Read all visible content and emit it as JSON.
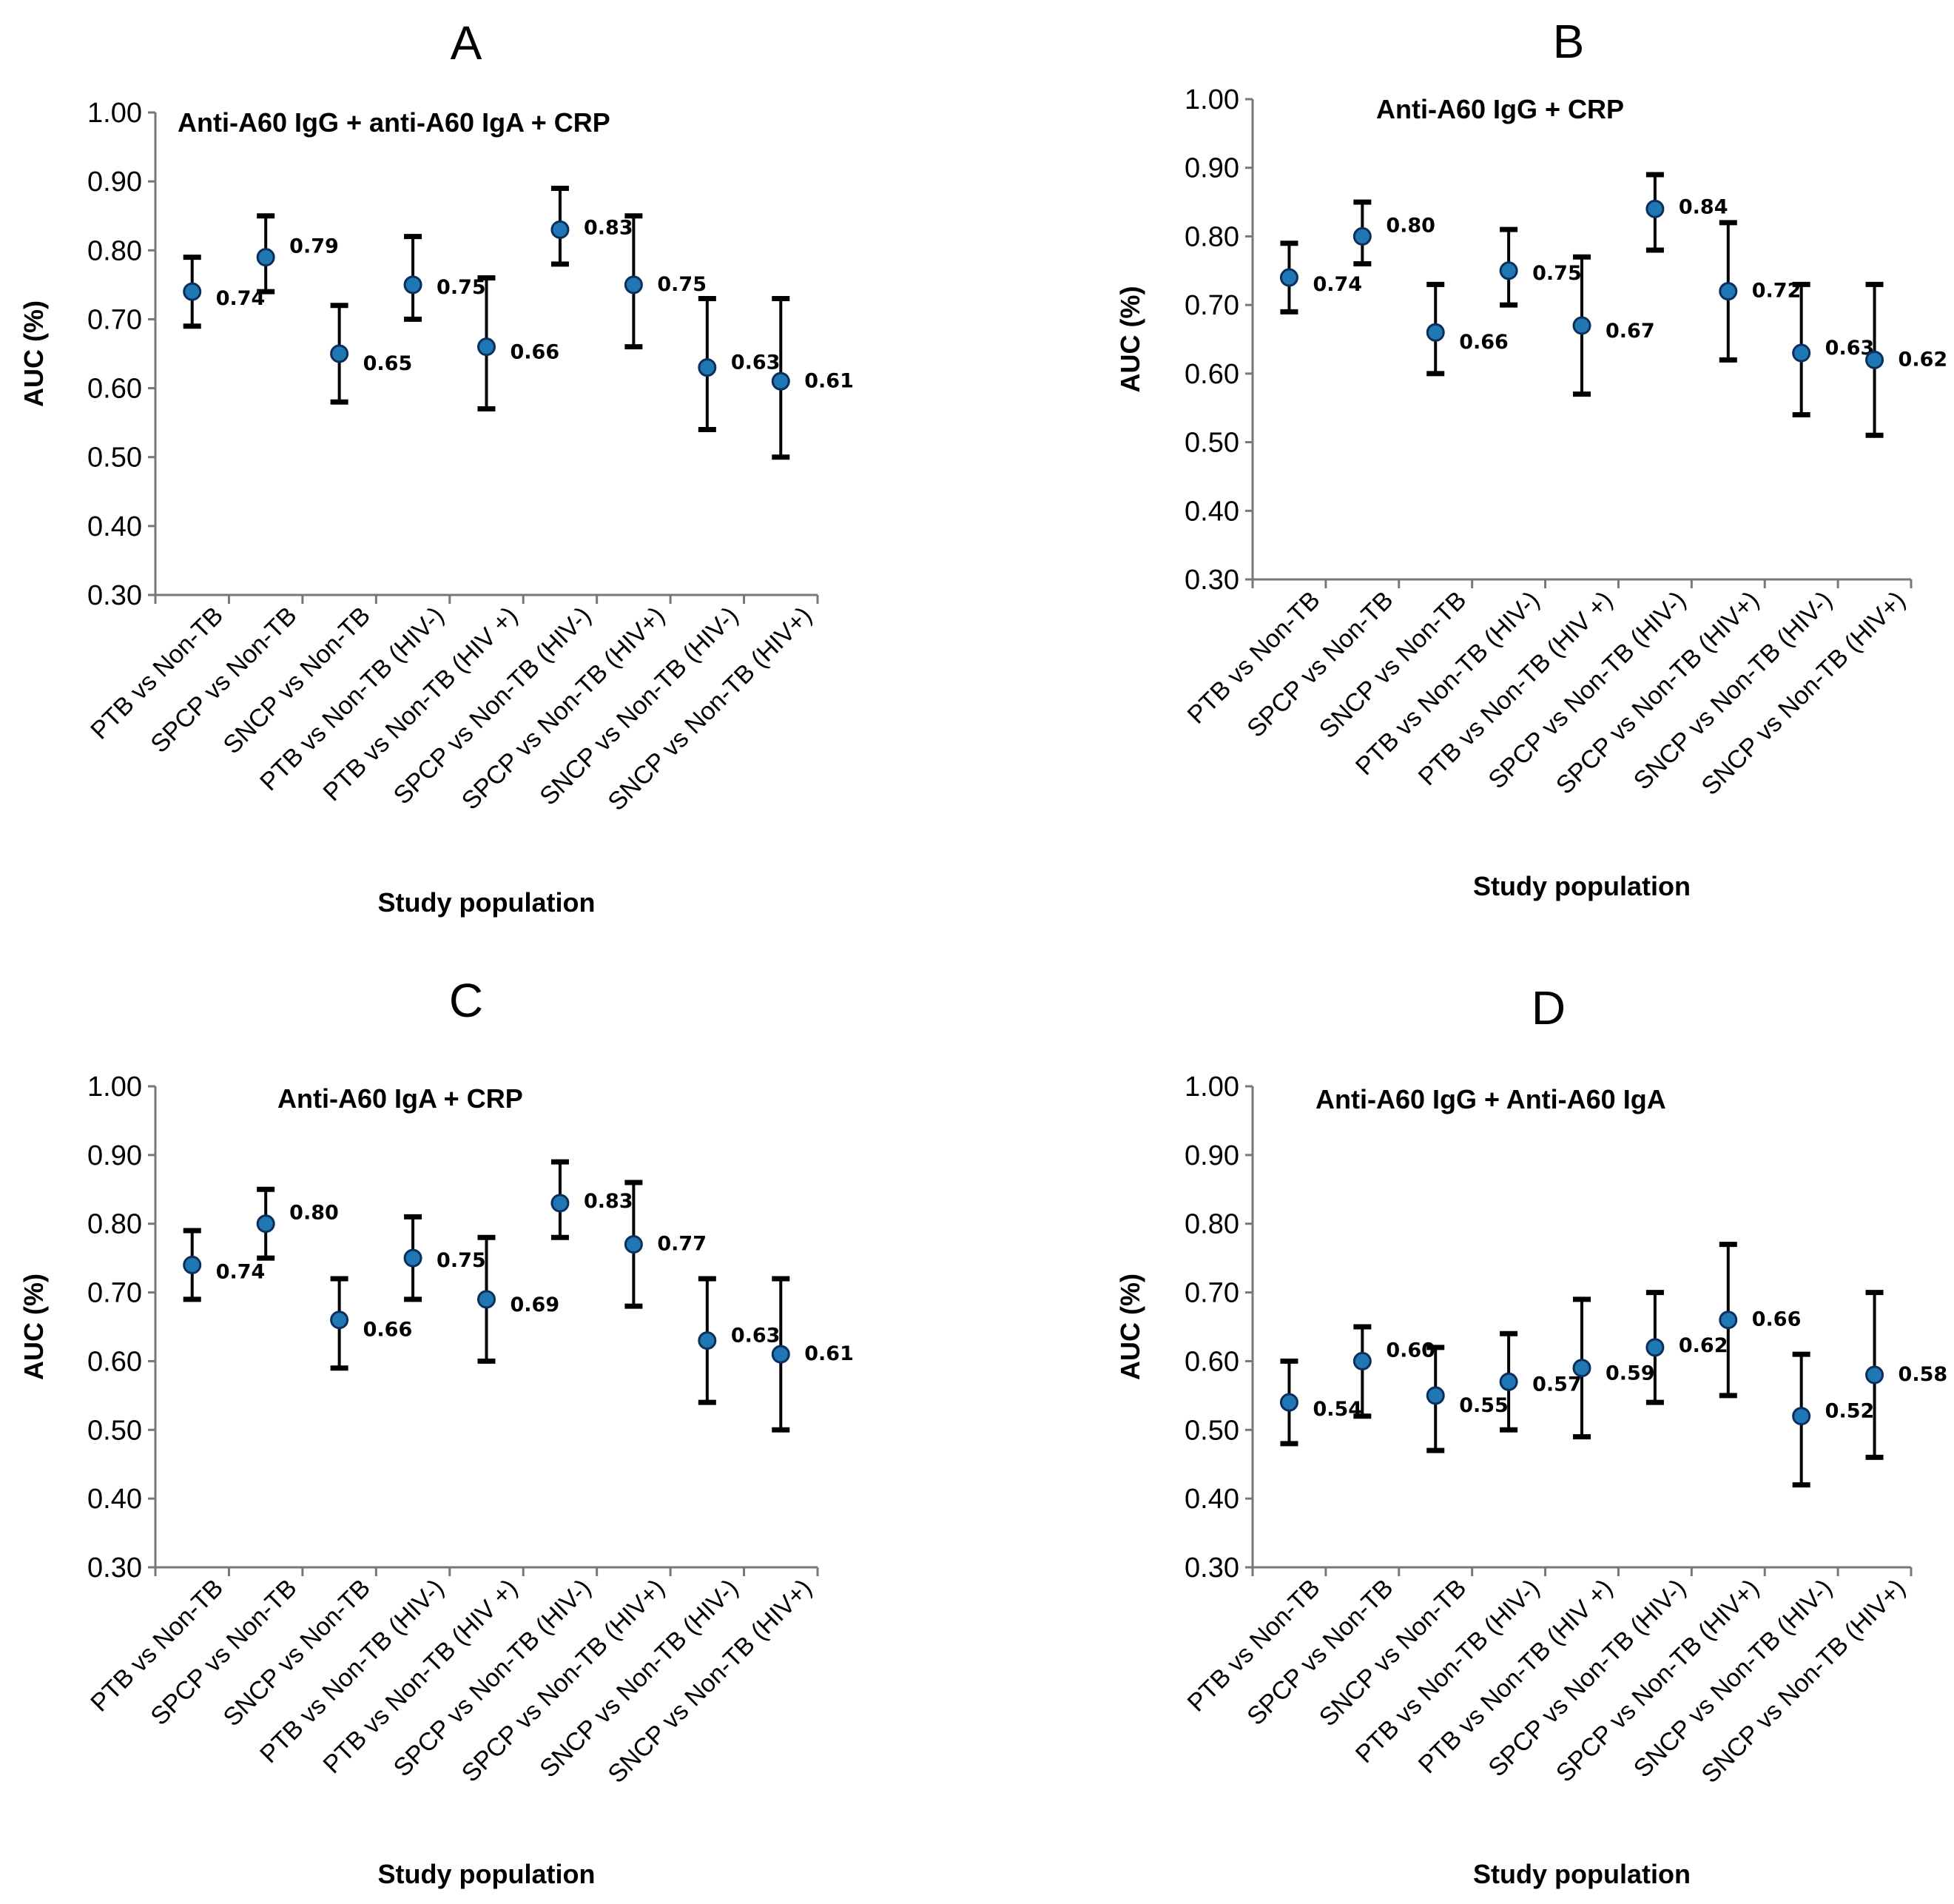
{
  "chart_data": [
    {
      "type": "scatter",
      "panel": "A",
      "title": "Anti-A60 IgG + anti-A60 IgA + CRP",
      "xlabel": "Study population",
      "ylabel": "AUC (%)",
      "ylim": [
        0.3,
        1.0
      ],
      "yticks": [
        "0.30",
        "0.40",
        "0.50",
        "0.60",
        "0.70",
        "0.80",
        "0.90",
        "1.00"
      ],
      "categories": [
        "PTB vs Non-TB",
        "SPCP vs Non-TB",
        "SNCP vs Non-TB",
        "PTB vs Non-TB (HIV-)",
        "PTB vs Non-TB (HIV +)",
        "SPCP vs Non-TB (HIV-)",
        "SPCP vs Non-TB (HIV+)",
        "SNCP vs Non-TB (HIV-)",
        "SNCP vs Non-TB (HIV+)"
      ],
      "values": [
        0.74,
        0.79,
        0.65,
        0.75,
        0.66,
        0.83,
        0.75,
        0.63,
        0.61
      ],
      "labels": [
        "0.74",
        "0.79",
        "0.65",
        "0.75",
        "0.66",
        "0.83",
        "0.75",
        "0.63",
        "0.61"
      ],
      "lower": [
        0.69,
        0.74,
        0.58,
        0.7,
        0.57,
        0.78,
        0.66,
        0.54,
        0.5
      ],
      "upper": [
        0.79,
        0.85,
        0.72,
        0.82,
        0.76,
        0.89,
        0.85,
        0.73,
        0.73
      ]
    },
    {
      "type": "scatter",
      "panel": "B",
      "title": "Anti-A60 IgG + CRP",
      "xlabel": "Study population",
      "ylabel": "AUC (%)",
      "ylim": [
        0.3,
        1.0
      ],
      "yticks": [
        "0.30",
        "0.40",
        "0.50",
        "0.60",
        "0.70",
        "0.80",
        "0.90",
        "1.00"
      ],
      "categories": [
        "PTB vs Non-TB",
        "SPCP vs Non-TB",
        "SNCP vs Non-TB",
        "PTB vs Non-TB (HIV-)",
        "PTB vs Non-TB (HIV +)",
        "SPCP vs Non-TB (HIV-)",
        "SPCP vs Non-TB (HIV+)",
        "SNCP vs Non-TB (HIV-)",
        "SNCP vs Non-TB (HIV+)"
      ],
      "values": [
        0.74,
        0.8,
        0.66,
        0.75,
        0.67,
        0.84,
        0.72,
        0.63,
        0.62
      ],
      "labels": [
        "0.74",
        "0.80",
        "0.66",
        "0.75",
        "0.67",
        "0.84",
        "0.72",
        "0.63",
        "0.62"
      ],
      "lower": [
        0.69,
        0.76,
        0.6,
        0.7,
        0.57,
        0.78,
        0.62,
        0.54,
        0.51
      ],
      "upper": [
        0.79,
        0.85,
        0.73,
        0.81,
        0.77,
        0.89,
        0.82,
        0.73,
        0.73
      ]
    },
    {
      "type": "scatter",
      "panel": "C",
      "title": "Anti-A60 IgA + CRP",
      "xlabel": "Study population",
      "ylabel": "AUC (%)",
      "ylim": [
        0.3,
        1.0
      ],
      "yticks": [
        "0.30",
        "0.40",
        "0.50",
        "0.60",
        "0.70",
        "0.80",
        "0.90",
        "1.00"
      ],
      "categories": [
        "PTB vs Non-TB",
        "SPCP vs Non-TB",
        "SNCP vs Non-TB",
        "PTB vs Non-TB (HIV-)",
        "PTB vs Non-TB (HIV +)",
        "SPCP vs Non-TB (HIV-)",
        "SPCP vs Non-TB (HIV+)",
        "SNCP vs Non-TB (HIV-)",
        "SNCP vs Non-TB (HIV+)"
      ],
      "values": [
        0.74,
        0.8,
        0.66,
        0.75,
        0.69,
        0.83,
        0.77,
        0.63,
        0.61
      ],
      "labels": [
        "0.74",
        "0.80",
        "0.66",
        "0.75",
        "0.69",
        "0.83",
        "0.77",
        "0.63",
        "0.61"
      ],
      "lower": [
        0.69,
        0.75,
        0.59,
        0.69,
        0.6,
        0.78,
        0.68,
        0.54,
        0.5
      ],
      "upper": [
        0.79,
        0.85,
        0.72,
        0.81,
        0.78,
        0.89,
        0.86,
        0.72,
        0.72
      ]
    },
    {
      "type": "scatter",
      "panel": "D",
      "title": "Anti-A60 IgG + Anti-A60 IgA",
      "xlabel": "Study population",
      "ylabel": "AUC (%)",
      "ylim": [
        0.3,
        1.0
      ],
      "yticks": [
        "0.30",
        "0.40",
        "0.50",
        "0.60",
        "0.70",
        "0.80",
        "0.90",
        "1.00"
      ],
      "categories": [
        "PTB vs Non-TB",
        "SPCP vs Non-TB",
        "SNCP vs Non-TB",
        "PTB vs Non-TB (HIV-)",
        "PTB vs Non-TB (HIV +)",
        "SPCP vs Non-TB (HIV-)",
        "SPCP vs Non-TB (HIV+)",
        "SNCP vs Non-TB (HIV-)",
        "SNCP vs Non-TB (HIV+)"
      ],
      "values": [
        0.54,
        0.6,
        0.55,
        0.57,
        0.59,
        0.62,
        0.66,
        0.52,
        0.58
      ],
      "labels": [
        "0.54",
        "0.60",
        "0.55",
        "0.57",
        "0.59",
        "0.62",
        "0.66",
        "0.52",
        "0.58"
      ],
      "lower": [
        0.48,
        0.52,
        0.47,
        0.5,
        0.49,
        0.54,
        0.55,
        0.42,
        0.46
      ],
      "upper": [
        0.6,
        0.65,
        0.62,
        0.64,
        0.69,
        0.7,
        0.77,
        0.61,
        0.7
      ]
    }
  ],
  "colors": {
    "point_fill": "#1f77b4",
    "point_stroke": "#0b2f5a",
    "error_bar": "#000000",
    "axis": "#777777"
  }
}
